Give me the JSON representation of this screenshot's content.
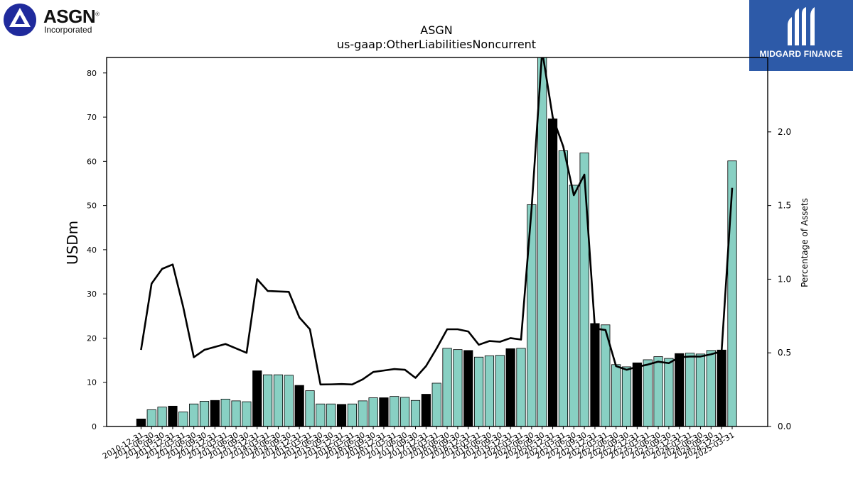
{
  "logo_left": {
    "name": "ASGN",
    "subtitle": "Incorporated",
    "mark": "®"
  },
  "logo_right": {
    "text": "MIDGARD FINANCE"
  },
  "chart_data": {
    "type": "bar",
    "title": "ASGN",
    "subtitle": "us-gaap:OtherLiabilitiesNoncurrent",
    "ylabel": "USDm",
    "y2label": "Percentage of Assets",
    "ylim": [
      0,
      83.5
    ],
    "y2lim": [
      0,
      2.505
    ],
    "yticks": [
      0,
      10,
      20,
      30,
      40,
      50,
      60,
      70,
      80
    ],
    "y2ticks": [
      "0.0",
      "0.5",
      "1.0",
      "1.5",
      "2.0"
    ],
    "colors": {
      "annual_bar": "#000000",
      "quarter_bar": "#88d0c3",
      "line": "#000000"
    },
    "categories": [
      "2010-12-31",
      "2011-06-30",
      "2011-09-30",
      "2011-12-31",
      "2012-03-31",
      "2012-06-30",
      "2012-09-30",
      "2012-12-31",
      "2013-03-31",
      "2013-06-30",
      "2013-09-30",
      "2013-12-31",
      "2014-03-31",
      "2014-06-30",
      "2014-09-30",
      "2014-12-31",
      "2015-03-31",
      "2015-06-30",
      "2015-09-30",
      "2015-12-31",
      "2016-03-31",
      "2016-06-30",
      "2016-09-30",
      "2016-12-31",
      "2017-03-31",
      "2017-06-30",
      "2017-09-30",
      "2017-12-31",
      "2018-03-31",
      "2018-06-30",
      "2018-09-30",
      "2018-12-31",
      "2019-03-31",
      "2019-06-30",
      "2019-09-30",
      "2019-12-31",
      "2020-03-31",
      "2020-06-30",
      "2020-09-30",
      "2020-12-31",
      "2021-03-31",
      "2021-06-30",
      "2021-09-30",
      "2021-12-31",
      "2022-03-31",
      "2022-06-30",
      "2022-09-30",
      "2022-12-31",
      "2023-03-31",
      "2023-06-30",
      "2023-09-30",
      "2023-12-31",
      "2024-03-31",
      "2024-06-30",
      "2024-09-30",
      "2024-12-31",
      "2025-03-31"
    ],
    "tick_labels": [
      "2010-12-31",
      "2011-06-30",
      "2011-09-30",
      "2011-12-31",
      "2012-03-31",
      "2012-06-30",
      "2012-09-30",
      "2012-12-31",
      "2013-03-31",
      "2013-06-30",
      "2013-09-30",
      "2013-12-31",
      "2014-03-31",
      "2014-06-30",
      "2014-09-30",
      "2014-12-31",
      "2015-03-31",
      "2015-06-30",
      "2015-09-30",
      "2015-12-31",
      "2016-03-31",
      "2016-06-30",
      "2016-09-30",
      "2016-12-31",
      "2017-03-31",
      "2017-06-30",
      "2017-09-30",
      "2017-12-31",
      "2018-03-31",
      "2018-06-30",
      "2018-09-30",
      "2018-12-31",
      "2019-03-31",
      "2019-06-30",
      "2019-09-30",
      "2019-12-31",
      "2020-03-31",
      "2020-06-30",
      "2020-09-30",
      "2020-12-31",
      "2021-03-31",
      "2021-06-30",
      "2021-09-30",
      "2021-12-31",
      "2022-03-31",
      "2022-06-30",
      "2022-09-30",
      "2022-12-31",
      "2023-03-31",
      "2023-06-30",
      "2023-09-30",
      "2023-12-31",
      "2024-03-31",
      "2024-06-30",
      "2024-09-30",
      "2024-12-31",
      "2025-03-31"
    ],
    "values": [
      1.7,
      3.8,
      4.4,
      4.6,
      3.3,
      5.1,
      5.7,
      5.9,
      6.2,
      5.8,
      5.6,
      12.6,
      11.7,
      11.7,
      11.6,
      9.3,
      8.1,
      5.1,
      5.1,
      5.0,
      5.1,
      5.8,
      6.5,
      6.5,
      6.8,
      6.6,
      5.9,
      7.3,
      9.8,
      17.7,
      17.4,
      17.2,
      15.7,
      16.0,
      16.1,
      17.6,
      17.7,
      50.2,
      84.0,
      69.6,
      62.4,
      54.6,
      61.9,
      23.3,
      23.0,
      14.0,
      13.5,
      14.4,
      15.1,
      15.8,
      15.4,
      16.5,
      16.6,
      16.4,
      17.2,
      17.3,
      60.1
    ],
    "annual": [
      true,
      false,
      false,
      true,
      false,
      false,
      false,
      true,
      false,
      false,
      false,
      true,
      false,
      false,
      false,
      true,
      false,
      false,
      false,
      true,
      false,
      false,
      false,
      true,
      false,
      false,
      false,
      true,
      false,
      false,
      false,
      true,
      false,
      false,
      false,
      true,
      false,
      false,
      false,
      true,
      false,
      false,
      false,
      true,
      false,
      false,
      false,
      true,
      false,
      false,
      false,
      true,
      false,
      false,
      false,
      true,
      false
    ],
    "pct_assets": [
      0.52,
      0.97,
      1.07,
      1.1,
      0.81,
      0.47,
      0.52,
      0.54,
      0.56,
      0.53,
      0.5,
      1.0,
      0.92,
      0.917,
      0.914,
      0.74,
      0.66,
      0.285,
      0.286,
      0.288,
      0.285,
      0.32,
      0.37,
      0.38,
      0.39,
      0.385,
      0.33,
      0.41,
      0.53,
      0.66,
      0.66,
      0.645,
      0.555,
      0.58,
      0.575,
      0.6,
      0.59,
      1.48,
      2.55,
      2.1,
      1.9,
      1.57,
      1.71,
      0.665,
      0.655,
      0.41,
      0.385,
      0.405,
      0.42,
      0.44,
      0.43,
      0.47,
      0.475,
      0.475,
      0.49,
      0.51,
      1.62
    ]
  }
}
